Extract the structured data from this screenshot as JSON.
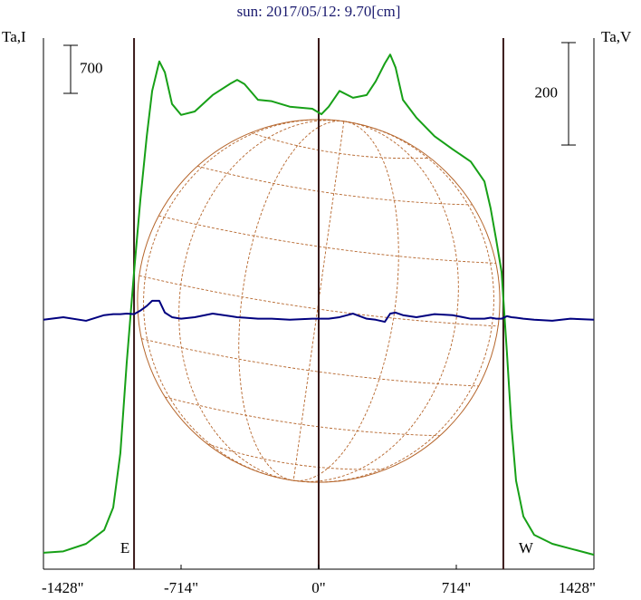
{
  "chart_data": {
    "type": "line",
    "title": "sun: 2017/05/12: 9.70[cm]",
    "ylabel": "Ta,I",
    "y2label": "Ta,V",
    "x": [
      -1428,
      -1325,
      -1207,
      -1113,
      -1066,
      -1029,
      -996,
      -958,
      -925,
      -892,
      -864,
      -827,
      -798,
      -761,
      -714,
      -643,
      -550,
      -456,
      -423,
      -385,
      -315,
      -244,
      -150,
      -33,
      14,
      52,
      108,
      178,
      249,
      296,
      343,
      371,
      399,
      437,
      507,
      601,
      695,
      789,
      860,
      892,
      921,
      949,
      977,
      1000,
      1024,
      1062,
      1118,
      1212,
      1306,
      1428
    ],
    "series": [
      {
        "name": "I",
        "color": "#17a017",
        "values": [
          240,
          260,
          370,
          570,
          900,
          1690,
          3010,
          4330,
          5390,
          6310,
          6970,
          7400,
          7240,
          6780,
          6620,
          6670,
          6910,
          7080,
          7130,
          7070,
          6840,
          6820,
          6740,
          6710,
          6630,
          6740,
          6970,
          6870,
          6910,
          7110,
          7370,
          7500,
          7310,
          6840,
          6580,
          6310,
          6120,
          5940,
          5650,
          5260,
          4800,
          4330,
          3140,
          2090,
          1290,
          770,
          500,
          370,
          300,
          210
        ]
      },
      {
        "name": "V",
        "color": "#00007f",
        "axis": "y2",
        "values": [
          0,
          5,
          -2,
          9,
          11,
          11,
          12,
          11,
          18,
          27,
          37,
          37,
          14,
          5,
          2,
          5,
          12,
          7,
          5,
          4,
          2,
          2,
          0,
          2,
          2,
          2,
          5,
          12,
          2,
          0,
          -4,
          12,
          14,
          9,
          5,
          11,
          9,
          2,
          2,
          4,
          2,
          2,
          7,
          5,
          4,
          2,
          0,
          -2,
          2,
          0
        ]
      }
    ],
    "xlim": [
      -1428,
      1428
    ],
    "xticks": [
      {
        "value": -1428,
        "label": "-1428\""
      },
      {
        "value": -714,
        "label": "-714\""
      },
      {
        "value": 0,
        "label": "0\""
      },
      {
        "value": 714,
        "label": "714\""
      },
      {
        "value": 1428,
        "label": "1428\""
      }
    ],
    "ylim": [
      0,
      7740
    ],
    "y2lim": [
      -487,
      550
    ],
    "scale_bars": [
      {
        "axis": "y",
        "value": 700,
        "label": "700"
      },
      {
        "axis": "y2",
        "value": 200,
        "label": "200"
      }
    ],
    "vlines": [
      -958,
      0,
      958
    ],
    "limb_labels": [
      {
        "x": -958,
        "label": "E"
      },
      {
        "x": 958,
        "label": "W"
      }
    ],
    "disk_radius": 940
  }
}
